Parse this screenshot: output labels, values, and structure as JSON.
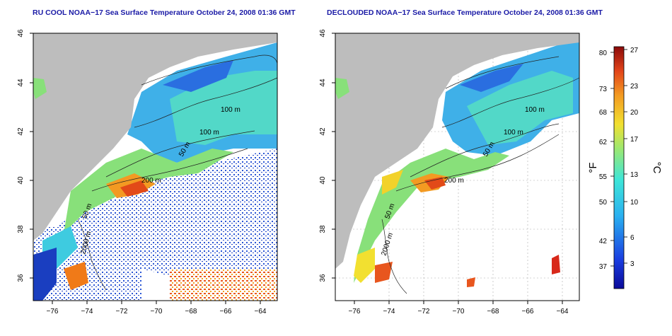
{
  "left_panel": {
    "title": "RU COOL NOAA−17 Sea Surface Temperature October 24, 2008 01:36 GMT",
    "contours": [
      "100 m",
      "100 m",
      "50 m",
      "200 m",
      "50 m",
      "2000 m"
    ]
  },
  "right_panel": {
    "title": "DECLOUDED NOAA−17 Sea Surface Temperature October 24, 2008 01:36 GMT",
    "contours": [
      "100 m",
      "100 m",
      "50 m",
      "200 m",
      "50 m",
      "2000 m"
    ]
  },
  "x_ticks": [
    "−76",
    "−74",
    "−72",
    "−70",
    "−68",
    "−66",
    "−64"
  ],
  "y_ticks": [
    "46",
    "44",
    "42",
    "40",
    "38",
    "36"
  ],
  "colorbar": {
    "f_label": "°F",
    "c_label": "°C",
    "f_ticks": [
      "80",
      "73",
      "68",
      "62",
      "55",
      "50",
      "42",
      "37"
    ],
    "c_ticks": [
      "27",
      "23",
      "20",
      "17",
      "13",
      "10",
      "6",
      "3"
    ]
  },
  "colors": {
    "title": "#1a1aa6",
    "land": "#bdbdbd",
    "ocean_cold": "#1e50d8",
    "ocean_cool": "#33c8e8",
    "ocean_mid": "#7fe0a0",
    "ocean_warm": "#f2d22a",
    "ocean_hot": "#e8481a"
  }
}
